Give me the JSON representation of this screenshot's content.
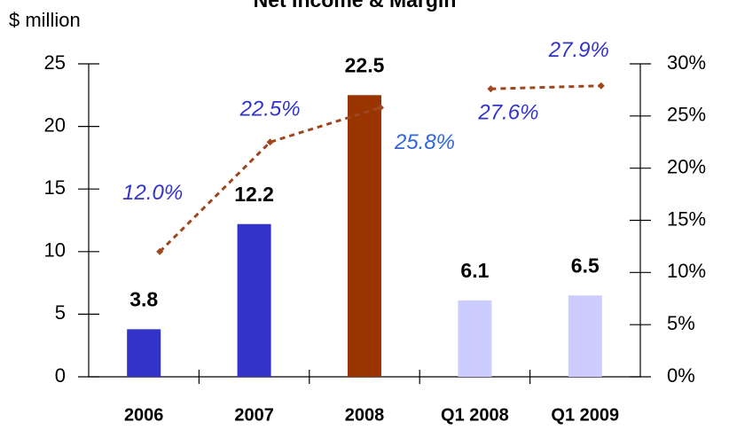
{
  "chart_data": {
    "type": "bar",
    "title": "Net Income & Margin",
    "y_axis_label": "$ million",
    "categories": [
      "2006",
      "2007",
      "2008",
      "Q1 2008",
      "Q1 2009"
    ],
    "series": [
      {
        "type": "bar",
        "colors": [
          "#3333cc",
          "#3333cc",
          "#993300",
          "#ccccff",
          "#ccccff"
        ],
        "values": [
          3.8,
          12.2,
          22.5,
          6.1,
          6.5
        ]
      },
      {
        "type": "line",
        "axis": "y2",
        "color": "#a0461e",
        "label_colors": [
          "#3333cc",
          "#3333cc",
          "#3366dd",
          "#3333cc",
          "#3333cc"
        ],
        "values": [
          12.0,
          22.5,
          25.8,
          null,
          null
        ],
        "value_labels": [
          "12.0%",
          "22.5%",
          "25.8%",
          null,
          null
        ]
      },
      {
        "type": "line",
        "axis": "y2",
        "color": "#a0461e",
        "label_colors": [
          "#3333cc",
          "#3333cc",
          "#3366dd",
          "#3333cc",
          "#3333cc"
        ],
        "values": [
          null,
          null,
          null,
          27.6,
          27.9
        ],
        "value_labels": [
          null,
          null,
          null,
          "27.6%",
          "27.9%"
        ]
      }
    ],
    "ylim": [
      0,
      25
    ],
    "yticks": [
      0,
      5,
      10,
      15,
      20,
      25
    ],
    "y2lim": [
      0,
      30
    ],
    "y2ticks": [
      {
        "value": 0,
        "label": "0%"
      },
      {
        "value": 5,
        "label": "5%"
      },
      {
        "value": 10,
        "label": "10%"
      },
      {
        "value": 15,
        "label": "15%"
      },
      {
        "value": 20,
        "label": "20%"
      },
      {
        "value": 25,
        "label": "25%"
      },
      {
        "value": 30,
        "label": "30%"
      }
    ]
  }
}
